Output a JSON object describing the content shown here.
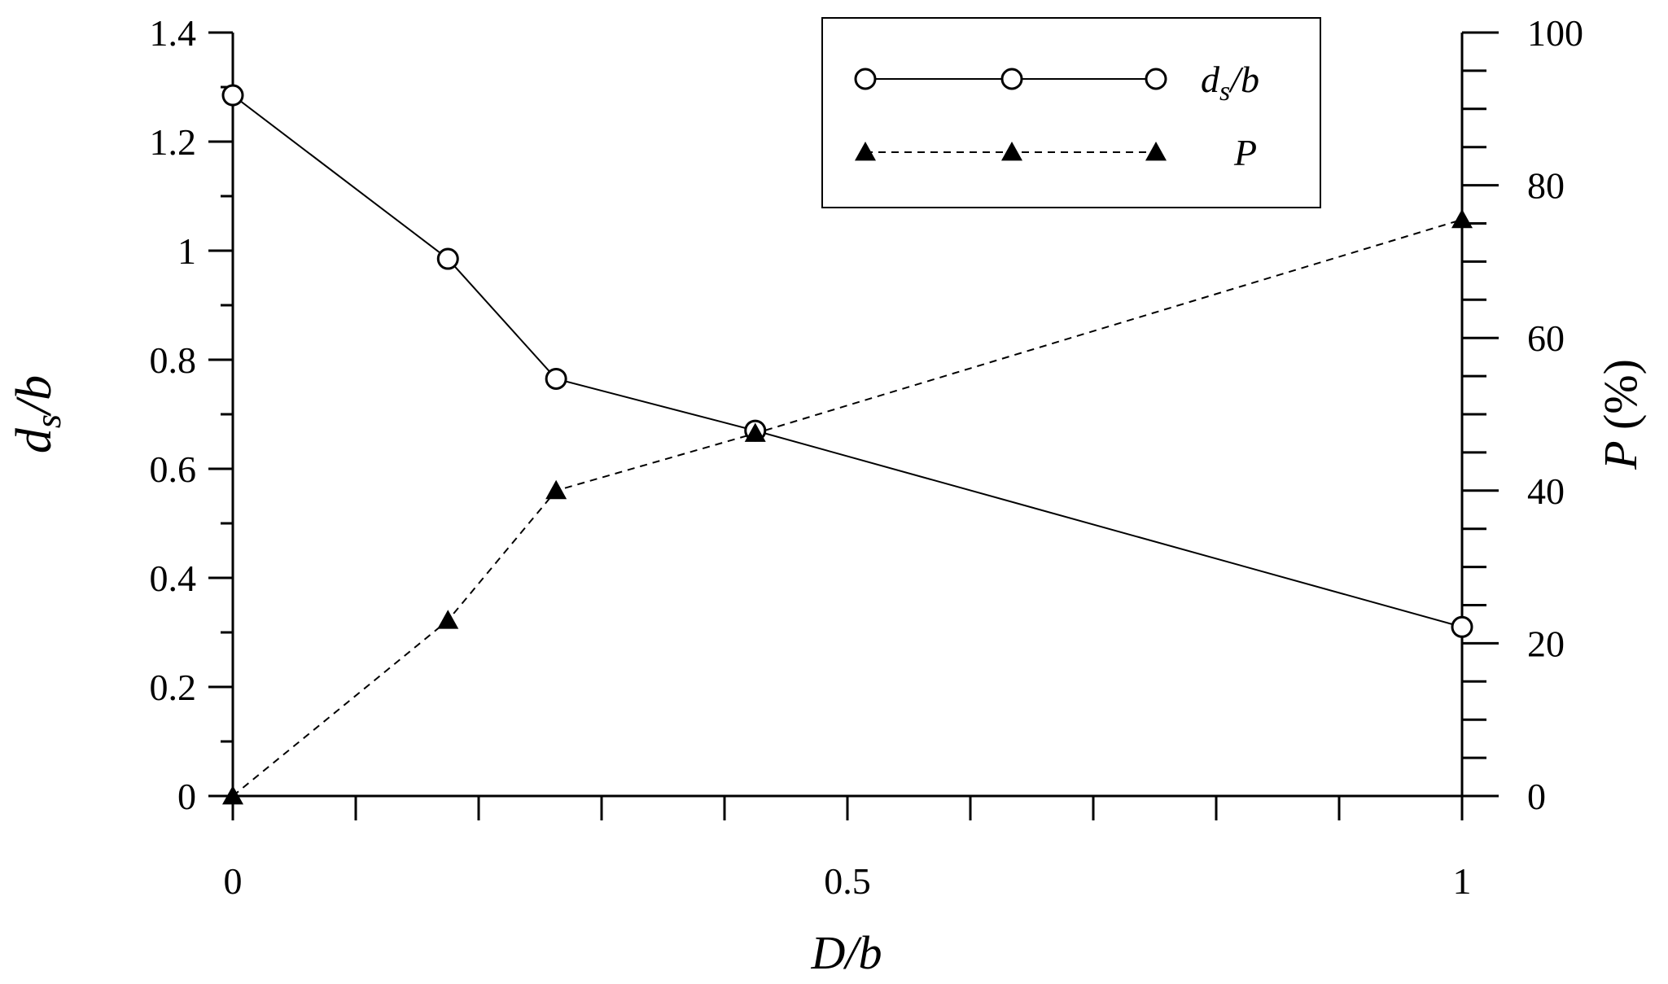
{
  "chart_data": {
    "type": "line",
    "xlabel": "D/b",
    "ylabel_left": "ds/b",
    "ylabel_right": "P (%)",
    "xlim": [
      0,
      1
    ],
    "xticks_labeled": [
      "0",
      "0.5",
      "1"
    ],
    "xtick_minor_step": 0.1,
    "ylim_left": [
      0,
      1.4
    ],
    "yticks_left": [
      "0",
      "0.2",
      "0.4",
      "0.6",
      "0.8",
      "1",
      "1.2",
      "1.4"
    ],
    "ylim_right": [
      0,
      100
    ],
    "yticks_right": [
      "0",
      "20",
      "40",
      "60",
      "80",
      "100"
    ],
    "ytick_right_minor_step": 5,
    "grid": false,
    "legend_position": "top-right",
    "series": [
      {
        "name": "ds/b",
        "axis": "left",
        "marker": "open-circle",
        "line": "solid",
        "color": "#000000",
        "x": [
          0,
          0.175,
          0.263,
          0.425,
          1.0
        ],
        "values": [
          1.285,
          0.985,
          0.765,
          0.67,
          0.31
        ]
      },
      {
        "name": "P",
        "axis": "right",
        "marker": "filled-triangle",
        "line": "dashed",
        "color": "#000000",
        "x": [
          0,
          0.175,
          0.263,
          0.425,
          1.0
        ],
        "values": [
          0,
          23,
          40,
          47.5,
          75.5
        ]
      }
    ]
  }
}
